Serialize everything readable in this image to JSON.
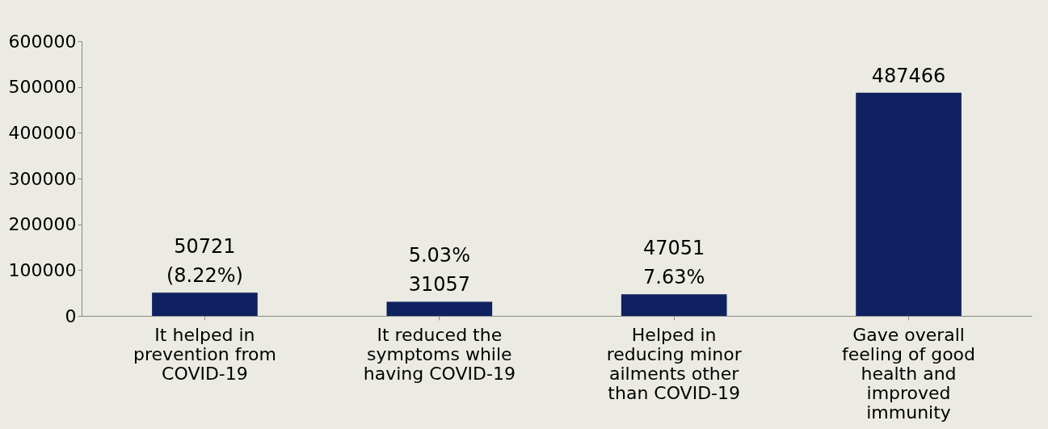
{
  "chart_data": {
    "type": "bar",
    "categories": [
      "It helped in prevention from COVID-19",
      "It reduced the symptoms while having COVID-19",
      "Helped in reducing minor ailments other than COVID-19",
      "Gave overall feeling of good health and improved immunity"
    ],
    "values": [
      50721,
      31057,
      47051,
      487466
    ],
    "value_labels": [
      "50721 (8.22%)",
      "5.03% 31057",
      "47051 7.63%",
      "487466"
    ],
    "color": "#0f2160",
    "ylim": [
      0,
      600000
    ],
    "yticks": [
      0,
      100000,
      200000,
      300000,
      400000,
      500000,
      600000
    ],
    "grid": false
  }
}
